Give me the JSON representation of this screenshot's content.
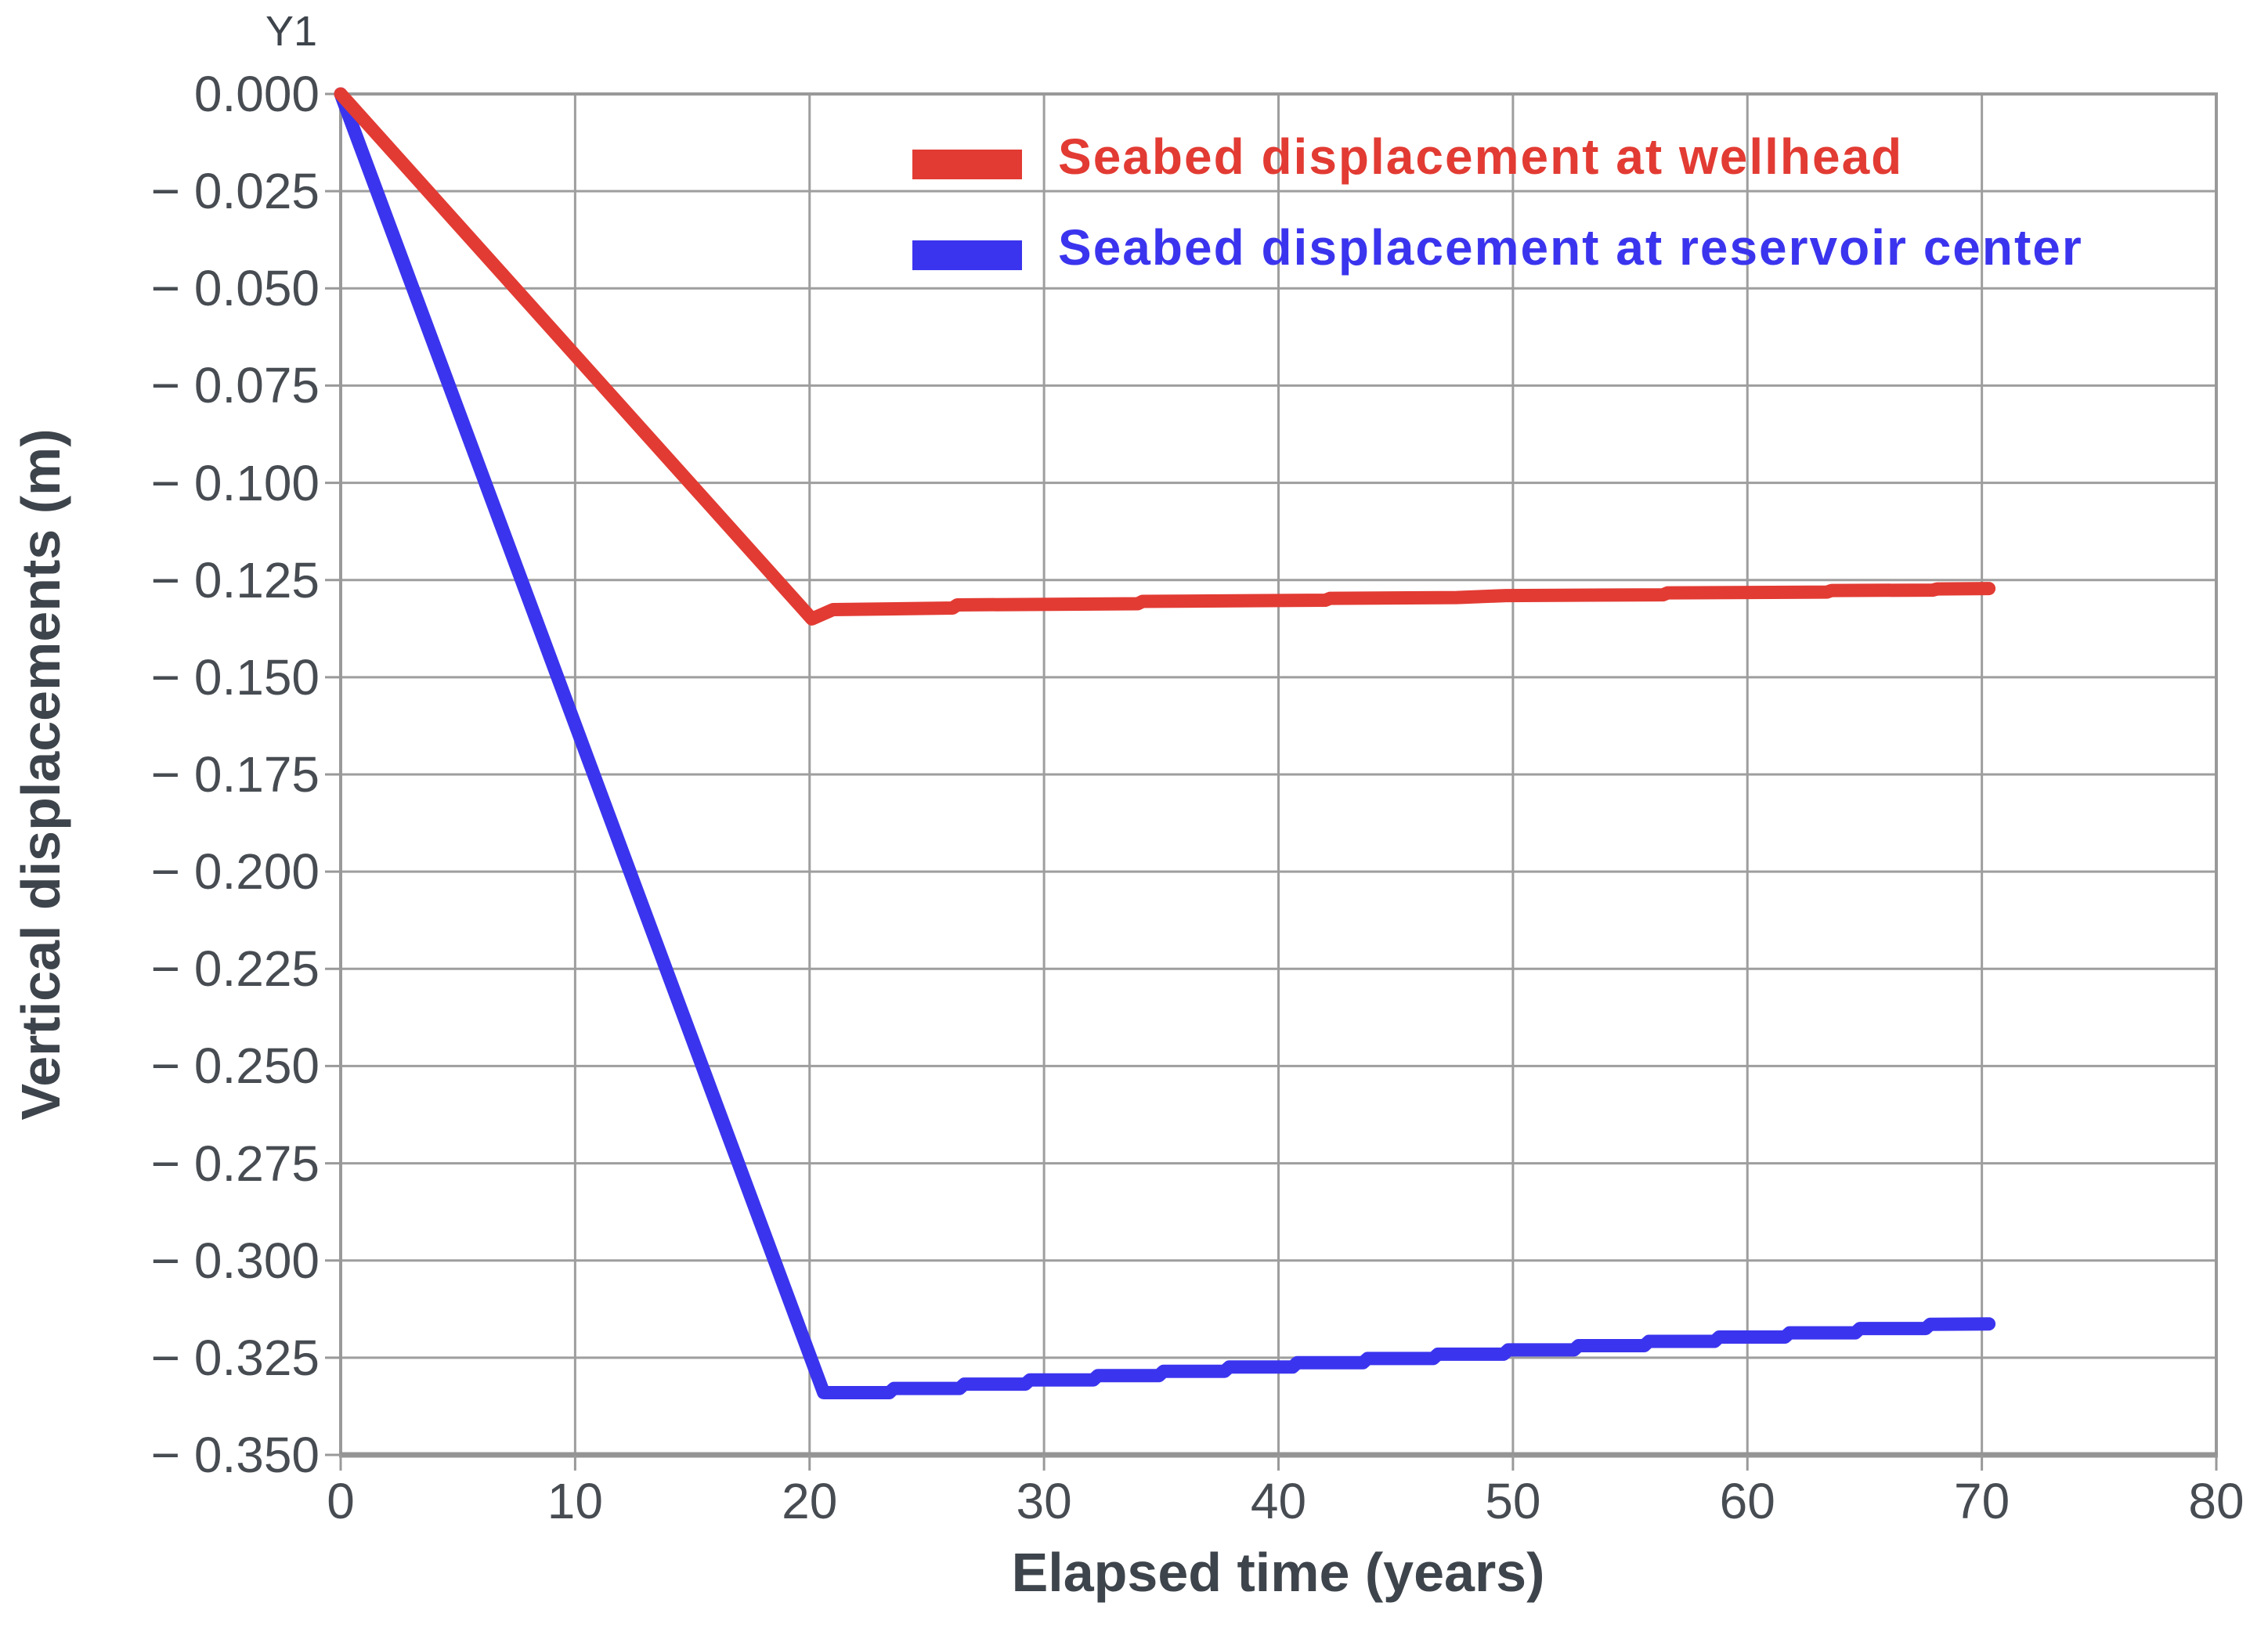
{
  "figure": {
    "y1_label": "Y1",
    "y_axis_title": "Vertical displacements (m)",
    "x_axis_title": "Elapsed time (years)"
  },
  "legend": [
    {
      "label": "Seabed displacement at wellhead",
      "color": "#e23b33"
    },
    {
      "label": "Seabed displacement at reservoir center",
      "color": "#3b34ee"
    }
  ],
  "colors": {
    "grid": "#9e9e9e",
    "frame": "#999999",
    "bottom_axis": "#949494",
    "tick_text": "#474c52",
    "title_text": "#3e444b"
  },
  "chart_data": {
    "type": "line",
    "title": "",
    "xlabel": "Elapsed time (years)",
    "ylabel": "Vertical displacements (m)",
    "xlim": [
      0,
      80
    ],
    "ylim": [
      -0.35,
      0
    ],
    "grid": true,
    "legend_position": "top-center-inside",
    "x_ticks": [
      0,
      10,
      20,
      30,
      40,
      50,
      60,
      70,
      80
    ],
    "y_ticks": [
      0,
      -0.025,
      -0.05,
      -0.075,
      -0.1,
      -0.125,
      -0.15,
      -0.175,
      -0.2,
      -0.225,
      -0.25,
      -0.275,
      -0.3,
      -0.325,
      -0.35
    ],
    "y_tick_labels": [
      "0.000",
      "− 0.025",
      "− 0.050",
      "− 0.075",
      "− 0.100",
      "− 0.125",
      "− 0.150",
      "− 0.175",
      "− 0.200",
      "− 0.225",
      "− 0.250",
      "− 0.275",
      "− 0.300",
      "− 0.325",
      "− 0.350"
    ],
    "x_tick_labels": [
      "0",
      "10",
      "20",
      "30",
      "40",
      "50",
      "60",
      "70",
      "80"
    ],
    "series": [
      {
        "name": "Seabed displacement at wellhead",
        "color": "#e23b33",
        "points": [
          [
            0,
            0.0
          ],
          [
            20.1,
            -0.135
          ],
          [
            21.0,
            -0.1326
          ],
          [
            26.1,
            -0.1322
          ],
          [
            26.3,
            -0.1314
          ],
          [
            34.0,
            -0.1311
          ],
          [
            34.2,
            -0.1305
          ],
          [
            42.0,
            -0.1302
          ],
          [
            42.2,
            -0.1297
          ],
          [
            47.6,
            -0.1295
          ],
          [
            49.7,
            -0.129
          ],
          [
            56.4,
            -0.1288
          ],
          [
            56.6,
            -0.1283
          ],
          [
            63.4,
            -0.1281
          ],
          [
            63.6,
            -0.1277
          ],
          [
            67.9,
            -0.1276
          ],
          [
            68.1,
            -0.1273
          ],
          [
            70.3,
            -0.1272
          ]
        ]
      },
      {
        "name": "Seabed displacement at reservoir center",
        "color": "#3b34ee",
        "points": [
          [
            0,
            0.0
          ],
          [
            20.6,
            -0.334
          ],
          [
            23.4,
            -0.334
          ],
          [
            23.6,
            -0.3329
          ],
          [
            26.4,
            -0.3329
          ],
          [
            26.6,
            -0.3318
          ],
          [
            29.2,
            -0.3318
          ],
          [
            29.4,
            -0.3307
          ],
          [
            32.1,
            -0.3307
          ],
          [
            32.3,
            -0.3296
          ],
          [
            34.9,
            -0.3296
          ],
          [
            35.1,
            -0.3285
          ],
          [
            37.7,
            -0.3285
          ],
          [
            37.9,
            -0.3274
          ],
          [
            40.6,
            -0.3274
          ],
          [
            40.8,
            -0.3263
          ],
          [
            43.6,
            -0.3263
          ],
          [
            43.8,
            -0.3252
          ],
          [
            46.6,
            -0.3252
          ],
          [
            46.8,
            -0.3241
          ],
          [
            49.6,
            -0.3241
          ],
          [
            49.8,
            -0.323
          ],
          [
            52.6,
            -0.323
          ],
          [
            52.8,
            -0.3219
          ],
          [
            55.6,
            -0.3219
          ],
          [
            55.8,
            -0.3208
          ],
          [
            58.6,
            -0.3208
          ],
          [
            58.8,
            -0.3197
          ],
          [
            61.6,
            -0.3197
          ],
          [
            61.8,
            -0.3186
          ],
          [
            64.6,
            -0.3186
          ],
          [
            64.8,
            -0.3175
          ],
          [
            67.6,
            -0.3175
          ],
          [
            67.8,
            -0.3164
          ],
          [
            70.3,
            -0.3163
          ]
        ]
      }
    ]
  }
}
